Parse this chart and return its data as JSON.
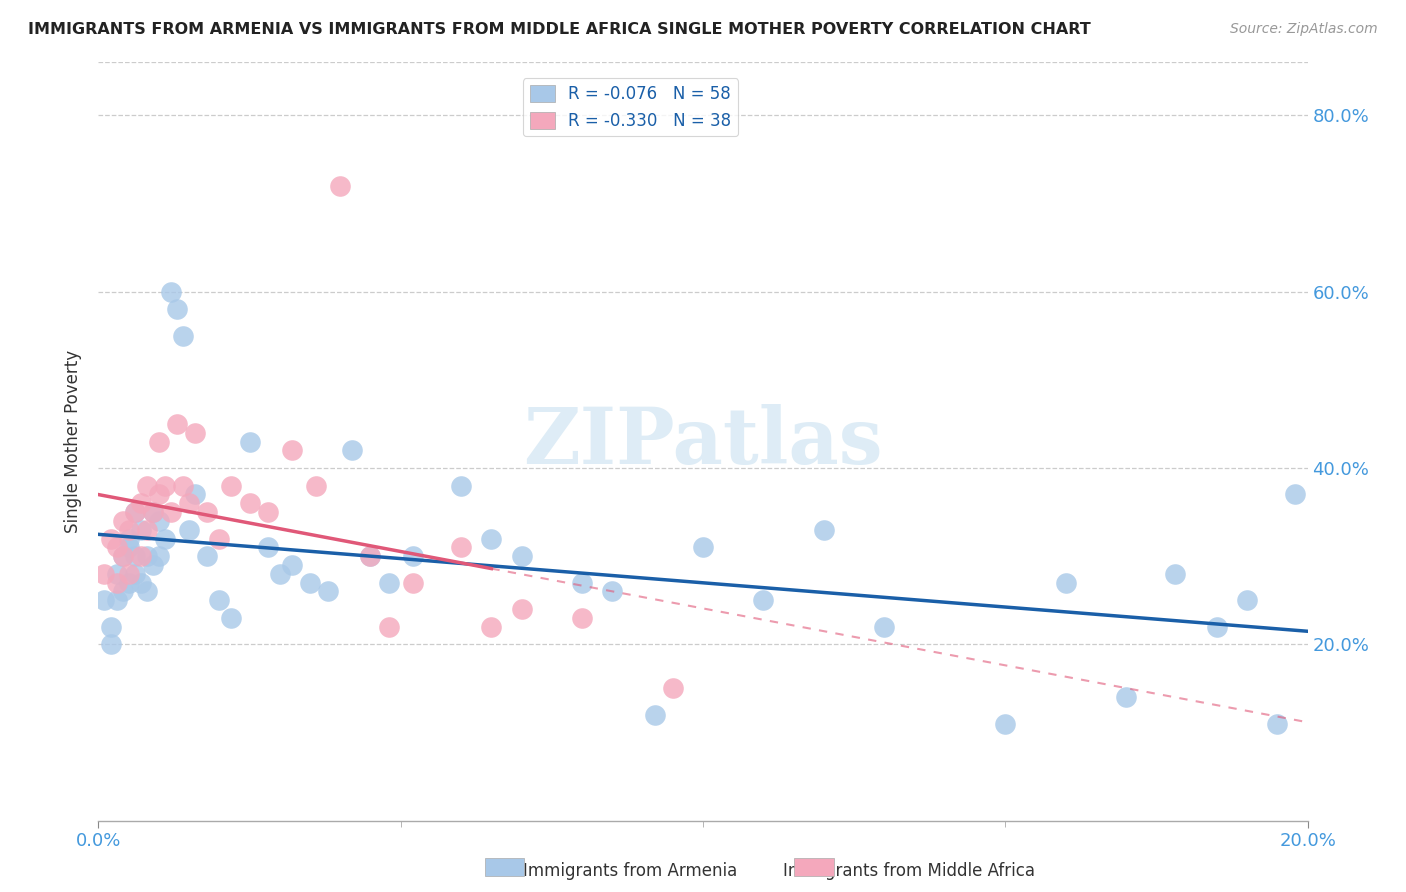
{
  "title": "IMMIGRANTS FROM ARMENIA VS IMMIGRANTS FROM MIDDLE AFRICA SINGLE MOTHER POVERTY CORRELATION CHART",
  "source": "Source: ZipAtlas.com",
  "ylabel": "Single Mother Poverty",
  "legend_entry1": "R = -0.076   N = 58",
  "legend_entry2": "R = -0.330   N = 38",
  "legend_label1": "Immigrants from Armenia",
  "legend_label2": "Immigrants from Middle Africa",
  "color_armenia": "#a8c8e8",
  "color_africa": "#f4a8bc",
  "line_color_armenia": "#1a5fa8",
  "line_color_africa": "#e05878",
  "watermark_color": "#c8e0f0",
  "xlim": [
    0.0,
    0.2
  ],
  "ylim": [
    0.0,
    0.86
  ],
  "armenia_x": [
    0.001,
    0.002,
    0.002,
    0.003,
    0.003,
    0.004,
    0.004,
    0.005,
    0.005,
    0.005,
    0.006,
    0.006,
    0.006,
    0.007,
    0.007,
    0.008,
    0.008,
    0.009,
    0.009,
    0.01,
    0.01,
    0.011,
    0.012,
    0.013,
    0.014,
    0.015,
    0.016,
    0.018,
    0.02,
    0.022,
    0.025,
    0.028,
    0.03,
    0.032,
    0.035,
    0.038,
    0.042,
    0.045,
    0.048,
    0.052,
    0.06,
    0.065,
    0.07,
    0.08,
    0.085,
    0.092,
    0.1,
    0.11,
    0.12,
    0.13,
    0.15,
    0.16,
    0.17,
    0.178,
    0.185,
    0.19,
    0.195,
    0.198
  ],
  "armenia_y": [
    0.25,
    0.2,
    0.22,
    0.28,
    0.25,
    0.3,
    0.26,
    0.31,
    0.27,
    0.32,
    0.3,
    0.35,
    0.28,
    0.27,
    0.33,
    0.3,
    0.26,
    0.29,
    0.35,
    0.3,
    0.34,
    0.32,
    0.6,
    0.58,
    0.55,
    0.33,
    0.37,
    0.3,
    0.25,
    0.23,
    0.43,
    0.31,
    0.28,
    0.29,
    0.27,
    0.26,
    0.42,
    0.3,
    0.27,
    0.3,
    0.38,
    0.32,
    0.3,
    0.27,
    0.26,
    0.12,
    0.31,
    0.25,
    0.33,
    0.22,
    0.11,
    0.27,
    0.14,
    0.28,
    0.22,
    0.25,
    0.11,
    0.37
  ],
  "africa_x": [
    0.001,
    0.002,
    0.003,
    0.003,
    0.004,
    0.004,
    0.005,
    0.005,
    0.006,
    0.007,
    0.007,
    0.008,
    0.008,
    0.009,
    0.01,
    0.01,
    0.011,
    0.012,
    0.013,
    0.014,
    0.015,
    0.016,
    0.018,
    0.02,
    0.022,
    0.025,
    0.028,
    0.032,
    0.036,
    0.04,
    0.045,
    0.048,
    0.052,
    0.06,
    0.065,
    0.07,
    0.08,
    0.095
  ],
  "africa_y": [
    0.28,
    0.32,
    0.27,
    0.31,
    0.3,
    0.34,
    0.33,
    0.28,
    0.35,
    0.3,
    0.36,
    0.33,
    0.38,
    0.35,
    0.37,
    0.43,
    0.38,
    0.35,
    0.45,
    0.38,
    0.36,
    0.44,
    0.35,
    0.32,
    0.38,
    0.36,
    0.35,
    0.42,
    0.38,
    0.72,
    0.3,
    0.22,
    0.27,
    0.31,
    0.22,
    0.24,
    0.23,
    0.15
  ],
  "solid_line_africa_xmax": 0.065,
  "yticks": [
    0.2,
    0.4,
    0.6,
    0.8
  ]
}
